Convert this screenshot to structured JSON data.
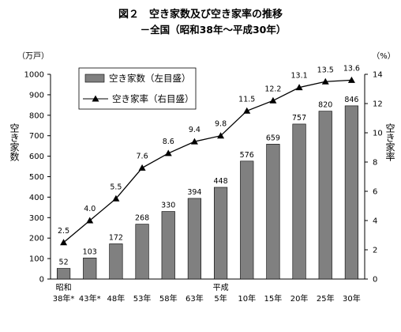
{
  "chart_data": {
    "type": "bar",
    "title": "図２　空き家数及び空き家率の推移",
    "subtitle": "－全国（昭和38年～平成30年）",
    "categories": [
      "38年*",
      "43年*",
      "48年",
      "53年",
      "58年",
      "63年",
      "5年",
      "10年",
      "15年",
      "20年",
      "25年",
      "30年"
    ],
    "era_labels": [
      {
        "index": 0,
        "text": "昭和"
      },
      {
        "index": 6,
        "text": "平成"
      }
    ],
    "series": [
      {
        "name": "空き家数（左目盛）",
        "type": "bar",
        "axis": "left",
        "color": "#808080",
        "values": [
          52,
          103,
          172,
          268,
          330,
          394,
          448,
          576,
          659,
          757,
          820,
          846
        ],
        "labels": [
          "52",
          "103",
          "172",
          "268",
          "330",
          "394",
          "448",
          "576",
          "659",
          "757",
          "820",
          "846"
        ]
      },
      {
        "name": "空き家率（右目盛）",
        "type": "line",
        "axis": "right",
        "color": "#000000",
        "values": [
          2.5,
          4.0,
          5.5,
          7.6,
          8.6,
          9.4,
          9.8,
          11.5,
          12.2,
          13.1,
          13.5,
          13.6
        ],
        "labels": [
          "2.5",
          "4.0",
          "5.5",
          "7.6",
          "8.6",
          "9.4",
          "9.8",
          "11.5",
          "12.2",
          "13.1",
          "13.5",
          "13.6"
        ]
      }
    ],
    "y_left": {
      "unit": "（万戸）",
      "label": "空き家数",
      "ylim": [
        0,
        1000
      ],
      "ticks": [
        "0",
        "100",
        "200",
        "300",
        "400",
        "500",
        "600",
        "700",
        "800",
        "900",
        "1000"
      ]
    },
    "y_right": {
      "unit": "（%）",
      "label": "空き家率",
      "ylim": [
        0,
        14
      ],
      "ticks": [
        "0",
        "2",
        "4",
        "6",
        "8",
        "10",
        "12",
        "14"
      ]
    },
    "grid": false,
    "legend": "top-left"
  }
}
